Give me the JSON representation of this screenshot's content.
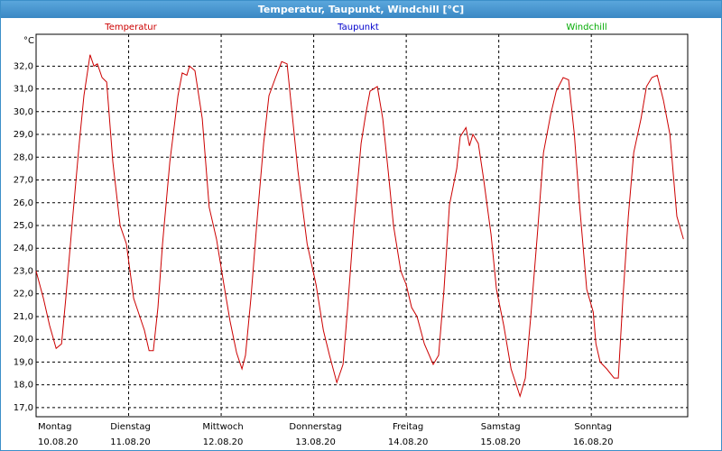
{
  "chart_data": {
    "type": "line",
    "title": "Temperatur, Taupunkt, Windchill [°C]",
    "y_unit": "°C",
    "series": [
      {
        "name": "Temperatur",
        "color": "#cc0000",
        "x": [
          0,
          1.9,
          3.5,
          5.2,
          6.6,
          7.7,
          9.4,
          11.2,
          12.4,
          14.0,
          15.0,
          15.9,
          17.1,
          18.3,
          19.9,
          21.8,
          23.4,
          25.3,
          26.9,
          28.1,
          29.3,
          30.4,
          31.6,
          32.8,
          34.7,
          35.8,
          36.8,
          37.9,
          39.1,
          39.8,
          41.2,
          43.1,
          44.9,
          46.8,
          48.7,
          50.3,
          52.0,
          53.4,
          54.3,
          55.7,
          57.4,
          59.0,
          60.4,
          62.1,
          63.7,
          65.1,
          66.3,
          67.9,
          70.3,
          72.6,
          74.5,
          76.1,
          78.0,
          79.6,
          80.8,
          82.4,
          84.3,
          85.5,
          86.6,
          88.5,
          89.9,
          91.3,
          92.7,
          94.6,
          96.0,
          97.4,
          98.8,
          100.7,
          103.0,
          104.4,
          105.8,
          107.2,
          109.1,
          110.0,
          111.5,
          112.4,
          113.3,
          114.7,
          116.1,
          118.0,
          119.4,
          121.3,
          123.2,
          125.5,
          126.9,
          128.3,
          130.0,
          131.6,
          133.5,
          134.9,
          136.7,
          138.1,
          139.6,
          141.0,
          142.8,
          144.5,
          145.2,
          146.3,
          148.0,
          149.9,
          151.0,
          152.2,
          153.6,
          155.0,
          156.9,
          158.3,
          159.7,
          161.1,
          162.7,
          164.4,
          166.2,
          167.9
        ],
        "values": [
          23.0,
          21.8,
          20.6,
          19.6,
          19.8,
          21.8,
          25.2,
          28.6,
          30.7,
          32.5,
          32.0,
          32.1,
          31.5,
          31.3,
          27.8,
          25.0,
          24.2,
          21.8,
          21.0,
          20.4,
          19.5,
          19.5,
          21.4,
          24.2,
          27.8,
          29.3,
          30.7,
          31.7,
          31.6,
          32.0,
          31.8,
          29.7,
          25.8,
          24.4,
          22.4,
          20.8,
          19.4,
          18.7,
          19.3,
          21.8,
          25.4,
          28.6,
          30.7,
          31.5,
          32.2,
          32.1,
          30.1,
          27.4,
          24.2,
          22.4,
          20.4,
          19.3,
          18.1,
          18.9,
          21.4,
          25.0,
          28.6,
          29.9,
          30.9,
          31.1,
          29.7,
          27.4,
          25.0,
          23.0,
          22.4,
          21.4,
          21.0,
          19.8,
          18.9,
          19.3,
          22.2,
          25.9,
          27.5,
          28.9,
          29.3,
          28.5,
          29.0,
          28.6,
          27.0,
          24.6,
          22.2,
          20.6,
          18.7,
          17.5,
          18.3,
          21.0,
          24.6,
          28.2,
          29.9,
          30.9,
          31.5,
          31.4,
          29.0,
          25.8,
          22.2,
          21.2,
          19.8,
          19.0,
          18.7,
          18.3,
          18.3,
          21.8,
          25.4,
          28.2,
          29.7,
          31.1,
          31.5,
          31.6,
          30.5,
          29.0,
          25.4,
          24.4
        ]
      },
      {
        "name": "Taupunkt",
        "color": "#0000cc"
      },
      {
        "name": "Windchill",
        "color": "#00aa00"
      }
    ],
    "xlim": [
      0,
      169
    ],
    "xticks": [
      {
        "value": 0,
        "label": "Montag",
        "date": "10.08.20"
      },
      {
        "value": 24,
        "label": "Dienstag",
        "date": "11.08.20"
      },
      {
        "value": 48,
        "label": "Mittwoch",
        "date": "12.08.20"
      },
      {
        "value": 72,
        "label": "Donnerstag",
        "date": "13.08.20"
      },
      {
        "value": 96,
        "label": "Freitag",
        "date": "14.08.20"
      },
      {
        "value": 120,
        "label": "Samstag",
        "date": "15.08.20"
      },
      {
        "value": 144,
        "label": "Sonntag",
        "date": "16.08.20"
      }
    ],
    "ylim": [
      16.6,
      33.4
    ],
    "yticks": [
      {
        "value": 17,
        "label": "17,0"
      },
      {
        "value": 18,
        "label": "18,0"
      },
      {
        "value": 19,
        "label": "19,0"
      },
      {
        "value": 20,
        "label": "20,0"
      },
      {
        "value": 21,
        "label": "21,0"
      },
      {
        "value": 22,
        "label": "22,0"
      },
      {
        "value": 23,
        "label": "23,0"
      },
      {
        "value": 24,
        "label": "24,0"
      },
      {
        "value": 25,
        "label": "25,0"
      },
      {
        "value": 26,
        "label": "26,0"
      },
      {
        "value": 27,
        "label": "27,0"
      },
      {
        "value": 28,
        "label": "28,0"
      },
      {
        "value": 29,
        "label": "29,0"
      },
      {
        "value": 30,
        "label": "30,0"
      },
      {
        "value": 31,
        "label": "31,0"
      },
      {
        "value": 32,
        "label": "32,0"
      }
    ],
    "grid": true
  }
}
